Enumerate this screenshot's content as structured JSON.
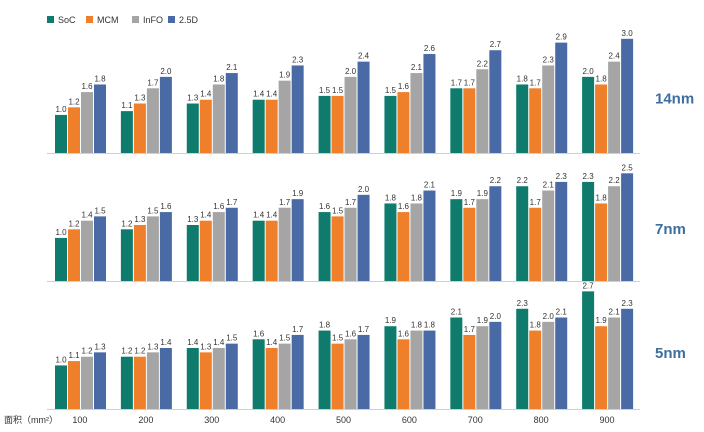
{
  "chart_data": {
    "type": "bar",
    "categories": [
      "100",
      "200",
      "300",
      "400",
      "500",
      "600",
      "700",
      "800",
      "900"
    ],
    "xlabel": "面积（mm²）",
    "legend_position": "top-left",
    "series_names": [
      "SoC",
      "MCM",
      "InFO",
      "2.5D"
    ],
    "colors": {
      "SoC": "#0e7b6c",
      "MCM": "#f07f2c",
      "InFO": "#a5a5a5",
      "2.5D": "#4a6aa5"
    },
    "node_label_color": "#3c6ea0",
    "panels": [
      {
        "label": "14nm",
        "ylim": [
          0,
          3.1
        ],
        "series": [
          {
            "name": "SoC",
            "values": [
              1.0,
              1.1,
              1.3,
              1.4,
              1.5,
              1.5,
              1.7,
              1.8,
              2.0
            ]
          },
          {
            "name": "MCM",
            "values": [
              1.2,
              1.3,
              1.4,
              1.4,
              1.5,
              1.6,
              1.7,
              1.7,
              1.8
            ]
          },
          {
            "name": "InFO",
            "values": [
              1.6,
              1.7,
              1.8,
              1.9,
              2.0,
              2.1,
              2.2,
              2.3,
              2.4
            ]
          },
          {
            "name": "2.5D",
            "values": [
              1.8,
              2.0,
              2.1,
              2.3,
              2.4,
              2.6,
              2.7,
              2.9,
              3.0
            ]
          }
        ]
      },
      {
        "label": "7nm",
        "ylim": [
          0,
          2.6
        ],
        "series": [
          {
            "name": "SoC",
            "values": [
              1.0,
              1.2,
              1.3,
              1.4,
              1.6,
              1.8,
              1.9,
              2.2,
              2.3
            ]
          },
          {
            "name": "MCM",
            "values": [
              1.2,
              1.3,
              1.4,
              1.4,
              1.5,
              1.6,
              1.7,
              1.7,
              1.8
            ]
          },
          {
            "name": "InFO",
            "values": [
              1.4,
              1.5,
              1.6,
              1.7,
              1.7,
              1.8,
              1.9,
              2.1,
              2.2
            ]
          },
          {
            "name": "2.5D",
            "values": [
              1.5,
              1.6,
              1.7,
              1.9,
              2.0,
              2.1,
              2.2,
              2.3,
              2.5
            ]
          }
        ]
      },
      {
        "label": "5nm",
        "ylim": [
          0,
          2.8
        ],
        "series": [
          {
            "name": "SoC",
            "values": [
              1.0,
              1.2,
              1.4,
              1.6,
              1.8,
              1.9,
              2.1,
              2.3,
              2.7
            ]
          },
          {
            "name": "MCM",
            "values": [
              1.1,
              1.2,
              1.3,
              1.4,
              1.5,
              1.6,
              1.7,
              1.8,
              1.9
            ]
          },
          {
            "name": "InFO",
            "values": [
              1.2,
              1.3,
              1.4,
              1.5,
              1.6,
              1.8,
              1.9,
              2.0,
              2.1
            ]
          },
          {
            "name": "2.5D",
            "values": [
              1.3,
              1.4,
              1.5,
              1.7,
              1.7,
              1.8,
              2.0,
              2.1,
              2.3
            ]
          }
        ]
      }
    ]
  }
}
